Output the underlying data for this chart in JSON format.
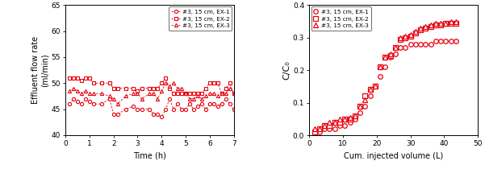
{
  "left": {
    "xlabel": "Time (h)",
    "ylabel": "Effluent flow rate\n(ml/min)",
    "xlim": [
      0,
      7
    ],
    "ylim": [
      40,
      65
    ],
    "yticks": [
      40,
      45,
      50,
      55,
      60,
      65
    ],
    "ex1_x": [
      0.17,
      0.33,
      0.5,
      0.67,
      0.83,
      1.0,
      1.17,
      1.5,
      1.83,
      2.0,
      2.17,
      2.5,
      2.83,
      3.0,
      3.17,
      3.5,
      3.67,
      3.83,
      4.0,
      4.17,
      4.33,
      4.5,
      4.67,
      4.83,
      5.0,
      5.17,
      5.33,
      5.5,
      5.67,
      5.83,
      6.0,
      6.17,
      6.33,
      6.5,
      6.67,
      6.83,
      7.0
    ],
    "ex1_y": [
      46,
      47,
      46.5,
      46,
      47,
      46.5,
      46,
      46,
      47,
      44,
      44,
      45,
      45.5,
      45,
      45,
      45,
      44,
      44,
      43.5,
      45,
      47,
      45,
      46,
      45,
      45,
      46,
      45,
      45.5,
      46,
      45,
      46,
      46,
      45.5,
      46,
      47,
      46,
      45
    ],
    "ex2_x": [
      0.17,
      0.33,
      0.5,
      0.67,
      0.83,
      1.0,
      1.17,
      1.5,
      1.83,
      2.0,
      2.17,
      2.5,
      2.83,
      3.0,
      3.17,
      3.5,
      3.67,
      3.83,
      4.0,
      4.17,
      4.33,
      4.5,
      4.67,
      4.83,
      5.0,
      5.17,
      5.33,
      5.5,
      5.67,
      5.83,
      6.0,
      6.17,
      6.33,
      6.5,
      6.67,
      6.83,
      7.0
    ],
    "ex2_y": [
      51,
      51,
      51,
      50.5,
      51,
      51,
      50,
      50,
      50,
      49,
      49,
      49,
      49,
      48.5,
      49,
      49,
      49,
      49,
      50,
      51,
      49,
      48,
      48,
      48,
      48,
      48,
      48,
      48,
      48,
      49,
      50,
      50,
      50,
      48,
      49,
      50,
      48
    ],
    "ex3_x": [
      0.17,
      0.33,
      0.5,
      0.67,
      0.83,
      1.0,
      1.17,
      1.5,
      1.83,
      2.0,
      2.17,
      2.5,
      2.83,
      3.0,
      3.17,
      3.5,
      3.67,
      3.83,
      4.0,
      4.17,
      4.33,
      4.5,
      4.67,
      4.83,
      5.0,
      5.17,
      5.33,
      5.5,
      5.67,
      5.83,
      6.0,
      6.17,
      6.33,
      6.5,
      6.67,
      6.83,
      7.0
    ],
    "ex3_y": [
      48.5,
      49,
      48.5,
      48,
      48.5,
      48,
      48,
      48,
      47.5,
      47,
      46,
      47.5,
      48,
      48,
      47,
      48,
      48,
      47,
      48.5,
      50,
      49.5,
      50,
      49,
      49,
      48,
      47,
      47,
      47.5,
      47,
      47.5,
      48,
      48,
      47.5,
      48,
      48,
      49,
      48
    ],
    "legend": [
      "#3, 15 cm, EX-1",
      "#3, 15 cm, EX-2",
      "#3, 15 cm, EX-3"
    ],
    "color": "#e8000d"
  },
  "right": {
    "xlabel": "Cum. injected volume (L)",
    "ylabel": "C/C₀",
    "xlim": [
      0,
      50
    ],
    "ylim": [
      0,
      0.4
    ],
    "yticks": [
      0.0,
      0.1,
      0.2,
      0.3,
      0.4
    ],
    "ex1_x": [
      1.5,
      3.0,
      4.5,
      6.0,
      7.5,
      9.0,
      10.5,
      12.0,
      13.5,
      15.0,
      16.5,
      18.0,
      19.5,
      21.0,
      22.5,
      24.0,
      25.5,
      27.0,
      28.5,
      30.0,
      31.5,
      33.0,
      34.5,
      36.0,
      37.5,
      39.0,
      40.5,
      42.0,
      43.5
    ],
    "ex1_y": [
      0.01,
      0.01,
      0.02,
      0.02,
      0.02,
      0.03,
      0.03,
      0.04,
      0.05,
      0.07,
      0.09,
      0.12,
      0.15,
      0.18,
      0.21,
      0.24,
      0.25,
      0.27,
      0.27,
      0.28,
      0.28,
      0.28,
      0.28,
      0.28,
      0.29,
      0.29,
      0.29,
      0.29,
      0.29
    ],
    "ex2_x": [
      1.5,
      3.0,
      4.5,
      6.0,
      7.5,
      9.0,
      10.5,
      12.0,
      13.5,
      15.0,
      16.5,
      18.0,
      19.5,
      21.0,
      22.5,
      24.0,
      25.5,
      27.0,
      28.5,
      30.0,
      31.5,
      33.0,
      34.5,
      36.0,
      37.5,
      39.0,
      40.5,
      42.0,
      43.5
    ],
    "ex2_y": [
      0.01,
      0.02,
      0.03,
      0.03,
      0.04,
      0.04,
      0.05,
      0.05,
      0.06,
      0.09,
      0.12,
      0.14,
      0.15,
      0.21,
      0.24,
      0.245,
      0.27,
      0.295,
      0.3,
      0.305,
      0.315,
      0.325,
      0.33,
      0.335,
      0.34,
      0.34,
      0.345,
      0.345,
      0.345
    ],
    "ex3_x": [
      1.5,
      3.0,
      4.5,
      6.0,
      7.5,
      9.0,
      10.5,
      12.0,
      13.5,
      15.0,
      16.5,
      18.0,
      19.5,
      21.0,
      22.5,
      24.0,
      25.5,
      27.0,
      28.5,
      30.0,
      31.5,
      33.0,
      34.5,
      36.0,
      37.5,
      39.0,
      40.5,
      42.0,
      43.5
    ],
    "ex3_y": [
      0.02,
      0.02,
      0.03,
      0.04,
      0.04,
      0.05,
      0.05,
      0.055,
      0.06,
      0.09,
      0.11,
      0.14,
      0.15,
      0.21,
      0.24,
      0.25,
      0.27,
      0.3,
      0.305,
      0.31,
      0.32,
      0.33,
      0.335,
      0.34,
      0.345,
      0.345,
      0.345,
      0.348,
      0.348
    ],
    "legend": [
      "#3, 15 cm, EX-1",
      "#3, 15 cm, EX-2",
      "#3, 15 cm, EX-3"
    ],
    "color": "#e8000d"
  }
}
